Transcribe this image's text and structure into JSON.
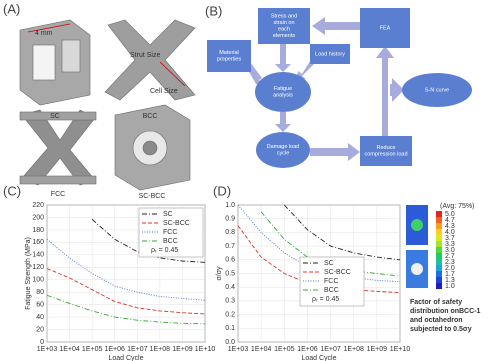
{
  "panel_a": {
    "label": "(A)",
    "dimension": "4 mm",
    "strut_label": "Strut Size",
    "cell_label": "Cell Size",
    "cells": [
      "SC",
      "BCC",
      "FCC",
      "SC-BCC"
    ]
  },
  "panel_b": {
    "label": "(B)",
    "nodes": [
      "Material properties",
      "Stress and strain on each elements",
      "Load history",
      "FEA",
      "Fatigue analysis",
      "S-N curve",
      "Damage load cycle",
      "Reduce compression load"
    ]
  },
  "chart_data": [
    {
      "type": "line",
      "label": "(C)",
      "xlabel": "Load Cycle",
      "ylabel": "Fatigue Strength (MPa)",
      "xscale": "log",
      "xlim": [
        1000,
        10000000000
      ],
      "xticks": [
        {
          "value": 1000,
          "label": "1E+03"
        },
        {
          "value": 10000,
          "label": "1E+04"
        },
        {
          "value": 100000,
          "label": "1E+05"
        },
        {
          "value": 1000000,
          "label": "1E+06"
        },
        {
          "value": 10000000,
          "label": "1E+07"
        },
        {
          "value": 100000000,
          "label": "1E+08"
        },
        {
          "value": 1000000000,
          "label": "1E+09"
        },
        {
          "value": 10000000000,
          "label": "1E+10"
        }
      ],
      "ylim": [
        0,
        220
      ],
      "yticks": [
        0,
        20,
        40,
        60,
        80,
        100,
        120,
        140,
        160,
        180,
        200,
        220
      ],
      "grid": true,
      "x": [
        1000,
        10000,
        100000,
        1000000,
        10000000,
        100000000,
        1000000000,
        10000000000
      ],
      "series": [
        {
          "name": "SC",
          "color": "#222222",
          "linestyle": "dashdot",
          "values": [
            null,
            null,
            197,
            165,
            145,
            135,
            130,
            128
          ]
        },
        {
          "name": "SC-BCC",
          "color": "#e0302a",
          "linestyle": "dashed",
          "values": [
            118,
            103,
            84,
            65,
            55,
            50,
            47,
            45
          ]
        },
        {
          "name": "FCC",
          "color": "#4a6fe0",
          "linestyle": "dotted",
          "values": [
            165,
            135,
            110,
            90,
            80,
            73,
            70,
            67
          ]
        },
        {
          "name": "BCC",
          "color": "#3aa63a",
          "linestyle": "dashdot",
          "values": [
            75,
            62,
            50,
            40,
            35,
            32,
            30,
            29
          ]
        }
      ],
      "legend_note": "ρᵣ = 0.45",
      "legend": "upper right"
    },
    {
      "type": "line",
      "label": "(D)",
      "xlabel": "Load Cycle",
      "ylabel": "σ/σy",
      "xscale": "log",
      "xlim": [
        1000,
        10000000000
      ],
      "xticks": [
        {
          "value": 1000,
          "label": "1E+03"
        },
        {
          "value": 10000,
          "label": "1E+04"
        },
        {
          "value": 100000,
          "label": "1E+05"
        },
        {
          "value": 1000000,
          "label": "1E+06"
        },
        {
          "value": 10000000,
          "label": "1E+07"
        },
        {
          "value": 100000000,
          "label": "1E+08"
        },
        {
          "value": 1000000000,
          "label": "1E+09"
        },
        {
          "value": 10000000000,
          "label": "1E+10"
        }
      ],
      "ylim": [
        0,
        1
      ],
      "yticks": [
        {
          "value": 0,
          "label": "0.0"
        },
        0.1,
        0.2,
        0.3,
        0.4,
        0.5,
        0.6,
        0.7,
        0.8,
        0.9,
        {
          "value": 1,
          "label": "1.0"
        }
      ],
      "grid": true,
      "x": [
        1000,
        10000,
        100000,
        1000000,
        10000000,
        100000000,
        1000000000,
        10000000000
      ],
      "series": [
        {
          "name": "SC",
          "color": "#222222",
          "linestyle": "dashdot",
          "values": [
            null,
            null,
            1,
            0.82,
            0.7,
            0.65,
            0.62,
            0.6
          ]
        },
        {
          "name": "SC-BCC",
          "color": "#e0302a",
          "linestyle": "dashed",
          "values": [
            0.85,
            0.62,
            0.5,
            0.43,
            0.4,
            0.38,
            0.37,
            0.36
          ]
        },
        {
          "name": "FCC",
          "color": "#4a6fe0",
          "linestyle": "dotted",
          "values": [
            1,
            0.8,
            0.65,
            0.55,
            0.5,
            0.47,
            0.45,
            0.44
          ]
        },
        {
          "name": "BCC",
          "color": "#3aa63a",
          "linestyle": "dashdot",
          "values": [
            null,
            0.95,
            0.75,
            0.62,
            0.55,
            0.52,
            0.5,
            0.48
          ]
        }
      ],
      "legend_note": "ρᵣ = 0.45",
      "legend": "center right",
      "inset": {
        "title": "(Avg: 75%)",
        "colorbar": [
          "5.0",
          "4.7",
          "4.3",
          "4.0",
          "3.7",
          "3.3",
          "3.0",
          "2.7",
          "2.3",
          "2.0",
          "1.7",
          "1.3",
          "1.0"
        ],
        "caption": [
          "Factor of safety",
          "distribution onBCC-1",
          "and octahedron",
          "subjected to 0.5σy"
        ]
      }
    }
  ]
}
